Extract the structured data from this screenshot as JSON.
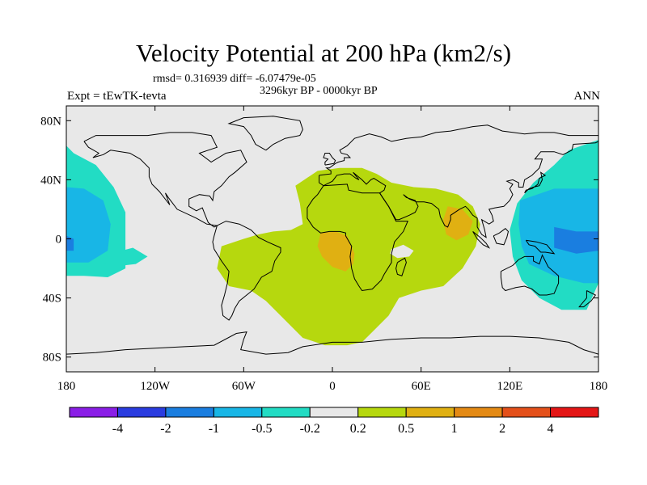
{
  "chart_data": {
    "type": "heatmap",
    "title": "Velocity Potential at 200 hPa (km2/s)",
    "stats_line": "rmsd= 0.316939 diff= -6.07479e-05",
    "period": "3296kyr BP - 0000kyr BP",
    "left_label": "Expt = tEwTK-tevta",
    "right_label": "ANN",
    "projection": "cylindrical-equidistant",
    "xlim": [
      -180,
      180
    ],
    "ylim": [
      -90,
      90
    ],
    "x_ticks": [
      {
        "value": -180,
        "label": "180"
      },
      {
        "value": -120,
        "label": "120W"
      },
      {
        "value": -60,
        "label": "60W"
      },
      {
        "value": 0,
        "label": "0"
      },
      {
        "value": 60,
        "label": "60E"
      },
      {
        "value": 120,
        "label": "120E"
      },
      {
        "value": 180,
        "label": "180"
      }
    ],
    "y_ticks": [
      {
        "value": 80,
        "label": "80N"
      },
      {
        "value": 40,
        "label": "40N"
      },
      {
        "value": 0,
        "label": "0"
      },
      {
        "value": -40,
        "label": "40S"
      },
      {
        "value": -80,
        "label": "80S"
      }
    ],
    "colorbar": {
      "levels": [
        "-4",
        "-2",
        "-1",
        "-0.5",
        "-0.2",
        "0.2",
        "0.5",
        "1",
        "2",
        "4"
      ],
      "colors": [
        "#8a1ee6",
        "#2a3ce0",
        "#1a7ee0",
        "#18b6e6",
        "#22dcc4",
        "#e8e8e8",
        "#b6d80e",
        "#e0b012",
        "#e48a14",
        "#e4501a",
        "#e41616"
      ]
    },
    "field_regions": [
      {
        "name": "central-pacific-negative",
        "level_index": 4,
        "lon": [
          -180,
          -175,
          -160,
          -148,
          -140,
          -140,
          -152,
          -168,
          -180
        ],
        "lat": [
          63,
          58,
          50,
          35,
          18,
          -20,
          -26,
          -25,
          -25
        ]
      },
      {
        "name": "central-pacific-core",
        "level_index": 3,
        "lon": [
          -180,
          -168,
          -155,
          -150,
          -152,
          -165,
          -180
        ],
        "lat": [
          35,
          34,
          26,
          10,
          -8,
          -16,
          -16
        ]
      },
      {
        "name": "central-pacific-center",
        "level_index": 2,
        "lon": [
          -180,
          -175,
          -175,
          -180
        ],
        "lat": [
          2,
          0,
          -8,
          -8
        ]
      },
      {
        "name": "southeast-pacific-patch",
        "level_index": 4,
        "lon": [
          -150,
          -135,
          -125,
          -133,
          -150,
          -158
        ],
        "lat": [
          -10,
          -6,
          -12,
          -17,
          -19,
          -14
        ]
      },
      {
        "name": "west-pacific-negative",
        "level_index": 4,
        "lon": [
          160,
          180,
          180,
          180,
          172,
          155,
          140,
          128,
          122,
          120,
          125,
          136,
          150
        ],
        "lat": [
          60,
          67,
          40,
          -30,
          -48,
          -48,
          -40,
          -28,
          -12,
          6,
          24,
          38,
          50
        ]
      },
      {
        "name": "west-pacific-core",
        "level_index": 3,
        "lon": [
          127,
          150,
          180,
          180,
          170,
          150,
          133,
          128,
          126
        ],
        "lat": [
          26,
          34,
          34,
          -30,
          -30,
          -25,
          -17,
          -5,
          10
        ]
      },
      {
        "name": "west-pacific-center",
        "level_index": 2,
        "lon": [
          150,
          165,
          180,
          180,
          165,
          150
        ],
        "lat": [
          8,
          5,
          5,
          -8,
          -10,
          -6
        ]
      },
      {
        "name": "atlantic-africa-positive",
        "level_index": 6,
        "lon": [
          -25,
          -10,
          5,
          20,
          30,
          40,
          55,
          70,
          85,
          95,
          100,
          97,
          88,
          75,
          60,
          45,
          38,
          30,
          20,
          10,
          -5,
          -20,
          -35,
          -45,
          -55,
          -70,
          -78,
          -75,
          -60,
          -50,
          -40,
          -28,
          -20,
          -22
        ],
        "lat": [
          36,
          46,
          48,
          48,
          44,
          38,
          35,
          34,
          30,
          22,
          10,
          -5,
          -20,
          -32,
          -35,
          -40,
          -52,
          -60,
          -70,
          -72,
          -72,
          -67,
          -52,
          -42,
          -35,
          -32,
          -20,
          -5,
          0,
          3,
          5,
          6,
          10,
          24
        ]
      },
      {
        "name": "angola-maximum",
        "level_index": 7,
        "lon": [
          -8,
          2,
          10,
          15,
          14,
          9,
          0,
          -7,
          -10
        ],
        "lat": [
          4,
          5,
          2,
          -10,
          -17,
          -22,
          -19,
          -12,
          -5
        ]
      },
      {
        "name": "bay-of-bengal-maximum",
        "level_index": 7,
        "lon": [
          78,
          88,
          95,
          92,
          84,
          77,
          75
        ],
        "lat": [
          22,
          20,
          12,
          3,
          -1,
          3,
          13
        ]
      },
      {
        "name": "indian-ocean-neutral-hole",
        "level_index": 5,
        "lon": [
          40,
          48,
          55,
          52,
          44,
          39
        ],
        "lat": [
          -7,
          -4,
          -8,
          -12,
          -13,
          -10
        ]
      }
    ]
  }
}
